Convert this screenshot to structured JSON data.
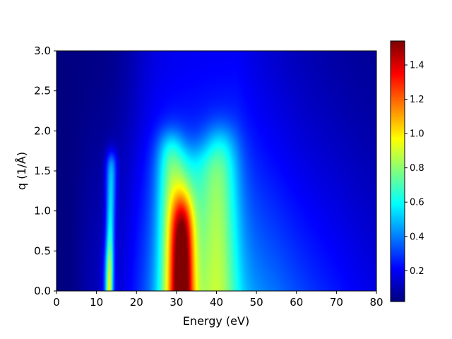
{
  "chart_data": {
    "type": "heatmap",
    "title": "",
    "xlabel": "Energy   (eV)",
    "ylabel": "q   (1/Å)",
    "xlim": [
      0,
      80
    ],
    "ylim": [
      0,
      3.0
    ],
    "x_ticks": [
      0,
      10,
      20,
      30,
      40,
      50,
      60,
      70,
      80
    ],
    "y_ticks": [
      "0.0",
      "0.5",
      "1.0",
      "1.5",
      "2.0",
      "2.5",
      "3.0"
    ],
    "colormap": "jet",
    "colorbar": {
      "range": [
        0.02,
        1.54
      ],
      "ticks": [
        "0.2",
        "0.4",
        "0.6",
        "0.8",
        "1.0",
        "1.2",
        "1.4"
      ]
    },
    "features": [
      {
        "name": "peak near 13 eV",
        "energy_ev": 13.5,
        "q_max": 1.7,
        "max_value": 1.0
      },
      {
        "name": "main peak near 31 eV",
        "energy_ev": 31.5,
        "q_max": 1.1,
        "max_value": 1.54
      },
      {
        "name": "shoulder near 42 eV",
        "energy_ev": 42,
        "q_max": 2.0,
        "max_value": 0.6
      }
    ],
    "grid": false
  }
}
